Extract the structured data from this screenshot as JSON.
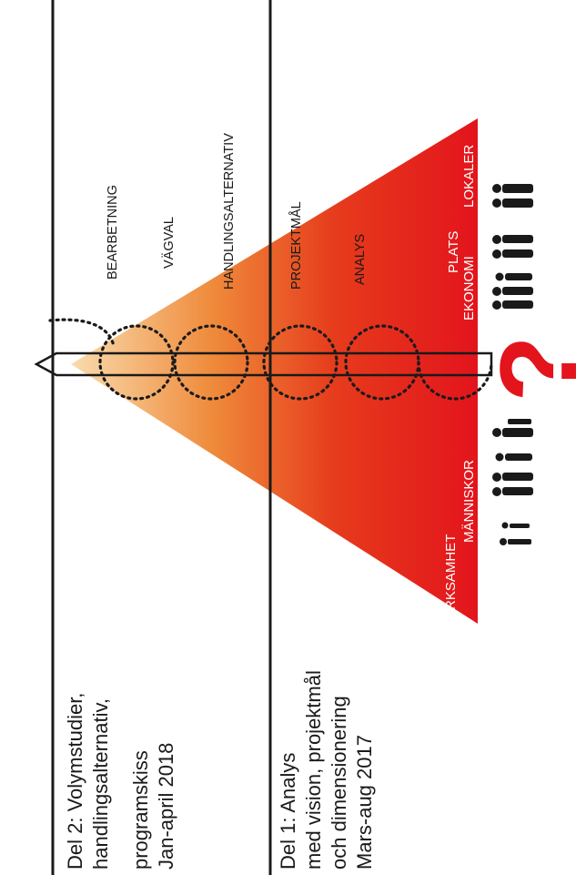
{
  "phases": {
    "del2": [
      "Del 2: Volymstudier,",
      "handlingsalternativ,",
      "programskiss",
      "Jan-april 2018"
    ],
    "del1": [
      "Del 1: Analys",
      "med vision, projektmål",
      "och dimensionering",
      "Mars-aug 2017"
    ]
  },
  "stages": {
    "bearbetning": "BEARBETNING",
    "vagval": "VÄGVAL",
    "handlingsalternativ": "HANDLINGSALTERNATIV",
    "projektmal": "PROJEKTMÅL",
    "analys": "ANALYS"
  },
  "inputs_left": [
    "VERKSAMHET",
    "MÄNNISKOR"
  ],
  "inputs_right": [
    "PLATS",
    "EKONOMI",
    "LOKALER"
  ],
  "colors": {
    "triangle_base": "#e3141c",
    "triangle_tip": "#f6c88c",
    "question_mark": "#e3141c",
    "line": "#1a1a1a"
  },
  "icons": [
    "people-group-icon",
    "question-mark-icon",
    "arrow-icon"
  ]
}
